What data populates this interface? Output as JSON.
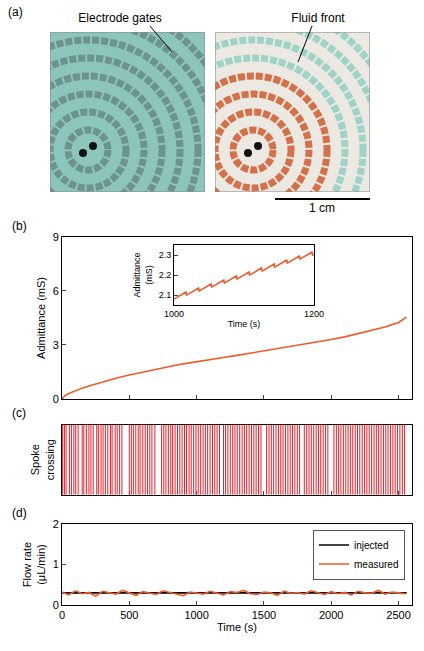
{
  "photo_panel": {
    "panel": "(a)",
    "labels": [
      "Electrode gates",
      "Fluid front"
    ],
    "scale_bar": "1 cm"
  },
  "chart_data": [
    {
      "type": "line",
      "panel": "(b)",
      "ylabel": "Admittance (mS)",
      "xlim": [
        0,
        2600
      ],
      "xticks": [
        0,
        500,
        1000,
        1500,
        2000,
        2500
      ],
      "ylim": [
        0,
        9
      ],
      "yticks": [
        0,
        3,
        6,
        9
      ],
      "tick_labels": "y",
      "grid": false,
      "series": [
        {
          "color": "#f05a28",
          "x": [
            0,
            20,
            50,
            100,
            150,
            200,
            300,
            400,
            500,
            600,
            700,
            800,
            900,
            1000,
            1100,
            1200,
            1300,
            1400,
            1500,
            1600,
            1700,
            1800,
            1900,
            2000,
            2100,
            2200,
            2300,
            2400,
            2500,
            2560
          ],
          "values": [
            0,
            0.17,
            0.3,
            0.47,
            0.6,
            0.72,
            0.95,
            1.15,
            1.33,
            1.5,
            1.65,
            1.8,
            1.95,
            2.08,
            2.19,
            2.3,
            2.42,
            2.54,
            2.66,
            2.78,
            2.9,
            3.03,
            3.16,
            3.3,
            3.45,
            3.62,
            3.8,
            4.0,
            4.25,
            4.55
          ]
        }
      ],
      "inset": {
        "type": "line",
        "xlabel": "Time (s)",
        "ylabel": "Admittance (mS)",
        "xlim": [
          1000,
          1200
        ],
        "xticks": [
          1000,
          1200
        ],
        "ylim": [
          2.05,
          2.35
        ],
        "yticks": [
          2.1,
          2.2,
          2.3
        ],
        "grid": false,
        "series": [
          {
            "color": "#f05a28",
            "x": [
              1000,
              1017,
              1018,
              1035,
              1036,
              1053,
              1054,
              1071,
              1072,
              1089,
              1090,
              1107,
              1108,
              1125,
              1126,
              1143,
              1144,
              1161,
              1162,
              1179,
              1180,
              1197,
              1198,
              1200
            ],
            "values": [
              2.08,
              2.115,
              2.1,
              2.135,
              2.12,
              2.155,
              2.14,
              2.175,
              2.16,
              2.195,
              2.18,
              2.215,
              2.2,
              2.235,
              2.22,
              2.255,
              2.24,
              2.275,
              2.26,
              2.295,
              2.28,
              2.315,
              2.3,
              2.302
            ]
          }
        ]
      }
    },
    {
      "type": "event",
      "panel": "(c)",
      "ylabel": "Spoke crossing",
      "xlim": [
        0,
        2600
      ],
      "xticks": [
        0,
        500,
        1000,
        1500,
        2000,
        2500
      ],
      "tick_labels": false,
      "grid": false,
      "color": "#e8202a",
      "x": [
        5,
        18,
        30,
        55,
        70,
        88,
        102,
        120,
        150,
        162,
        181,
        200,
        215,
        232,
        258,
        270,
        290,
        305,
        322,
        340,
        360,
        372,
        395,
        410,
        428,
        445,
        500,
        515,
        530,
        548,
        566,
        580,
        600,
        618,
        635,
        652,
        668,
        690,
        740,
        756,
        772,
        790,
        808,
        822,
        840,
        858,
        875,
        892,
        910,
        925,
        944,
        960,
        978,
        995,
        1012,
        1030,
        1048,
        1065,
        1082,
        1100,
        1118,
        1135,
        1152,
        1170,
        1200,
        1215,
        1232,
        1250,
        1268,
        1285,
        1302,
        1320,
        1338,
        1355,
        1372,
        1390,
        1408,
        1425,
        1442,
        1460,
        1478,
        1520,
        1538,
        1555,
        1572,
        1590,
        1608,
        1625,
        1642,
        1660,
        1678,
        1695,
        1712,
        1730,
        1748,
        1765,
        1800,
        1818,
        1835,
        1852,
        1870,
        1888,
        1905,
        1922,
        1940,
        1958,
        1975,
        2020,
        2038,
        2055,
        2072,
        2090,
        2108,
        2125,
        2142,
        2160,
        2178,
        2195,
        2212,
        2230,
        2248,
        2265,
        2282,
        2300,
        2318,
        2335,
        2352,
        2370,
        2388,
        2405,
        2422,
        2440,
        2458,
        2475,
        2492,
        2510,
        2528,
        2545
      ]
    },
    {
      "type": "line",
      "panel": "(d)",
      "xlabel": "Time (s)",
      "ylabel": "Flow rate (μL/min)",
      "xlim": [
        0,
        2600
      ],
      "xticks": [
        0,
        500,
        1000,
        1500,
        2000,
        2500
      ],
      "ylim": [
        0,
        2
      ],
      "yticks": [
        0,
        1,
        2
      ],
      "grid": false,
      "legend": "upper right",
      "series": [
        {
          "name": "injected",
          "color": "#000000",
          "x": [
            0,
            2560
          ],
          "values": [
            0.3,
            0.3
          ]
        },
        {
          "name": "measured",
          "color": "#f05a28",
          "x": [
            0,
            50,
            100,
            150,
            200,
            250,
            300,
            350,
            400,
            450,
            500,
            550,
            600,
            650,
            700,
            750,
            800,
            850,
            900,
            950,
            1000,
            1050,
            1100,
            1150,
            1200,
            1250,
            1300,
            1350,
            1400,
            1450,
            1500,
            1550,
            1600,
            1650,
            1700,
            1750,
            1800,
            1850,
            1900,
            1950,
            2000,
            2050,
            2100,
            2150,
            2200,
            2250,
            2300,
            2350,
            2400,
            2450,
            2500,
            2550
          ],
          "values": [
            0.32,
            0.25,
            0.35,
            0.28,
            0.31,
            0.22,
            0.34,
            0.3,
            0.27,
            0.36,
            0.29,
            0.24,
            0.33,
            0.3,
            0.26,
            0.35,
            0.31,
            0.28,
            0.23,
            0.32,
            0.3,
            0.27,
            0.34,
            0.29,
            0.25,
            0.33,
            0.31,
            0.36,
            0.28,
            0.26,
            0.32,
            0.3,
            0.24,
            0.34,
            0.29,
            0.31,
            0.27,
            0.35,
            0.3,
            0.26,
            0.33,
            0.28,
            0.31,
            0.25,
            0.34,
            0.3,
            0.29,
            0.36,
            0.27,
            0.32,
            0.3,
            0.28
          ]
        }
      ]
    }
  ]
}
